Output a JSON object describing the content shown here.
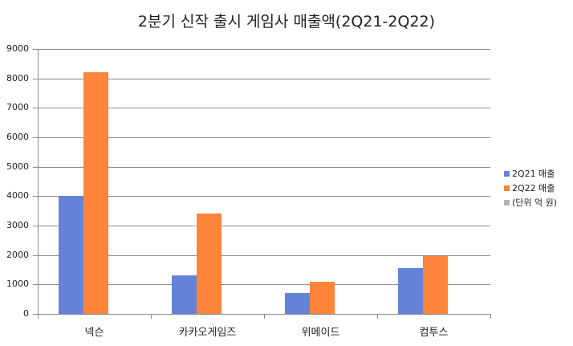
{
  "chart_data": {
    "type": "bar",
    "title": "2분기 신작 출시 게임사 매출액(2Q21-2Q22)",
    "categories": [
      "넥슨",
      "카카오게임즈",
      "위메이드",
      "컴투스"
    ],
    "series": [
      {
        "name": "2Q21 매출",
        "color": "#6483d8",
        "values": [
          4000,
          1300,
          700,
          1550
        ]
      },
      {
        "name": "2Q22 매출",
        "color": "#fd8439",
        "values": [
          8200,
          3400,
          1100,
          1960
        ]
      },
      {
        "name": "(단위 억 원)",
        "color": "#b4b4b4",
        "values": [
          0,
          0,
          0,
          0
        ]
      }
    ],
    "xlabel": "",
    "ylabel": "",
    "ylim": [
      0,
      9000
    ],
    "yticks": [
      "0",
      "1000",
      "2000",
      "3000",
      "4000",
      "5000",
      "6000",
      "7000",
      "8000",
      "9000"
    ],
    "grid": true,
    "legend_position": "right"
  }
}
